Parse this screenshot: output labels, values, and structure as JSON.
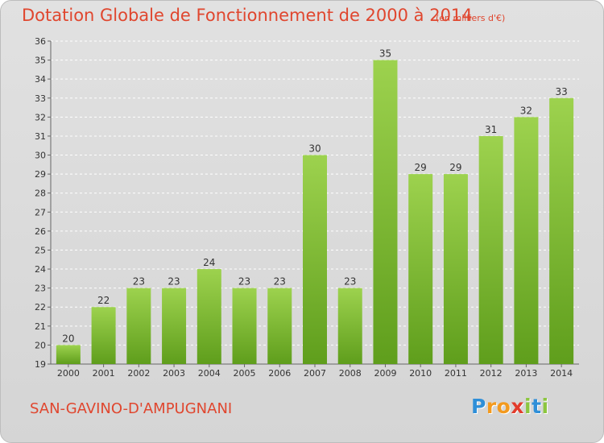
{
  "title": "Dotation Globale de Fonctionnement de 2000 à 2014",
  "subtitle": "(en milliers d'€)",
  "place": "SAN-GAVINO-D'AMPUGNANI",
  "brand": {
    "letters": [
      "P",
      "r",
      "o",
      "x",
      "i",
      "t",
      "i"
    ],
    "colors": [
      "#2f8fd8",
      "#f39a1f",
      "#f39a1f",
      "#e23c2c",
      "#8cc63f",
      "#2f8fd8",
      "#8cc63f"
    ]
  },
  "colors": {
    "bar_top": "#9dd24e",
    "bar_bottom": "#5f9e1c",
    "title": "#e0462e"
  },
  "chart_data": {
    "type": "bar",
    "categories": [
      "2000",
      "2001",
      "2002",
      "2003",
      "2004",
      "2005",
      "2006",
      "2007",
      "2008",
      "2009",
      "2010",
      "2011",
      "2012",
      "2013",
      "2014"
    ],
    "values": [
      20,
      22,
      23,
      23,
      24,
      23,
      23,
      30,
      23,
      35,
      29,
      29,
      31,
      32,
      33
    ],
    "title": "Dotation Globale de Fonctionnement de 2000 à 2014",
    "xlabel": "",
    "ylabel": "",
    "ylim": [
      19,
      36
    ],
    "yticks": [
      19,
      20,
      21,
      22,
      23,
      24,
      25,
      26,
      27,
      28,
      29,
      30,
      31,
      32,
      33,
      34,
      35,
      36
    ],
    "grid": "horizontal dashed",
    "data_labels": true
  }
}
